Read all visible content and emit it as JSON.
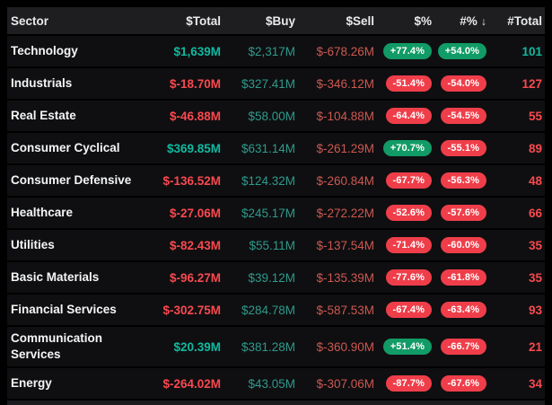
{
  "header": {
    "columns": [
      {
        "label": "Sector"
      },
      {
        "label": "$Total"
      },
      {
        "label": "$Buy"
      },
      {
        "label": "$Sell"
      },
      {
        "label": "$%"
      },
      {
        "label": "#%"
      },
      {
        "label": "#Total"
      }
    ],
    "sort_column": "#%",
    "sort_direction": "descending",
    "sort_icon": "↓"
  },
  "rows": [
    {
      "sector": "Technology",
      "total": "$1,639M",
      "total_tone": "pos",
      "buy": "$2,317M",
      "sell": "$-678.26M",
      "pct_dollar": "+77.4%",
      "pct_dollar_tone": "pos",
      "pct_count": "+54.0%",
      "pct_count_tone": "pos",
      "count": "101",
      "count_tone": "pos"
    },
    {
      "sector": "Industrials",
      "total": "$-18.70M",
      "total_tone": "neg",
      "buy": "$327.41M",
      "sell": "$-346.12M",
      "pct_dollar": "-51.4%",
      "pct_dollar_tone": "neg",
      "pct_count": "-54.0%",
      "pct_count_tone": "neg",
      "count": "127",
      "count_tone": "neg"
    },
    {
      "sector": "Real Estate",
      "total": "$-46.88M",
      "total_tone": "neg",
      "buy": "$58.00M",
      "sell": "$-104.88M",
      "pct_dollar": "-64.4%",
      "pct_dollar_tone": "neg",
      "pct_count": "-54.5%",
      "pct_count_tone": "neg",
      "count": "55",
      "count_tone": "neg"
    },
    {
      "sector": "Consumer Cyclical",
      "total": "$369.85M",
      "total_tone": "pos",
      "buy": "$631.14M",
      "sell": "$-261.29M",
      "pct_dollar": "+70.7%",
      "pct_dollar_tone": "pos",
      "pct_count": "-55.1%",
      "pct_count_tone": "neg",
      "count": "89",
      "count_tone": "neg"
    },
    {
      "sector": "Consumer Defensive",
      "total": "$-136.52M",
      "total_tone": "neg",
      "buy": "$124.32M",
      "sell": "$-260.84M",
      "pct_dollar": "-67.7%",
      "pct_dollar_tone": "neg",
      "pct_count": "-56.3%",
      "pct_count_tone": "neg",
      "count": "48",
      "count_tone": "neg"
    },
    {
      "sector": "Healthcare",
      "total": "$-27.06M",
      "total_tone": "neg",
      "buy": "$245.17M",
      "sell": "$-272.22M",
      "pct_dollar": "-52.6%",
      "pct_dollar_tone": "neg",
      "pct_count": "-57.6%",
      "pct_count_tone": "neg",
      "count": "66",
      "count_tone": "neg"
    },
    {
      "sector": "Utilities",
      "total": "$-82.43M",
      "total_tone": "neg",
      "buy": "$55.11M",
      "sell": "$-137.54M",
      "pct_dollar": "-71.4%",
      "pct_dollar_tone": "neg",
      "pct_count": "-60.0%",
      "pct_count_tone": "neg",
      "count": "35",
      "count_tone": "neg"
    },
    {
      "sector": "Basic Materials",
      "total": "$-96.27M",
      "total_tone": "neg",
      "buy": "$39.12M",
      "sell": "$-135.39M",
      "pct_dollar": "-77.6%",
      "pct_dollar_tone": "neg",
      "pct_count": "-61.8%",
      "pct_count_tone": "neg",
      "count": "35",
      "count_tone": "neg"
    },
    {
      "sector": "Financial Services",
      "total": "$-302.75M",
      "total_tone": "neg",
      "buy": "$284.78M",
      "sell": "$-587.53M",
      "pct_dollar": "-67.4%",
      "pct_dollar_tone": "neg",
      "pct_count": "-63.4%",
      "pct_count_tone": "neg",
      "count": "93",
      "count_tone": "neg"
    },
    {
      "sector": "Communication Services",
      "total": "$20.39M",
      "total_tone": "pos",
      "buy": "$381.28M",
      "sell": "$-360.90M",
      "pct_dollar": "+51.4%",
      "pct_dollar_tone": "pos",
      "pct_count": "-66.7%",
      "pct_count_tone": "neg",
      "count": "21",
      "count_tone": "neg"
    },
    {
      "sector": "Energy",
      "total": "$-264.02M",
      "total_tone": "neg",
      "buy": "$43.05M",
      "sell": "$-307.06M",
      "pct_dollar": "-87.7%",
      "pct_dollar_tone": "neg",
      "pct_count": "-67.6%",
      "pct_count_tone": "neg",
      "count": "34",
      "count_tone": "neg"
    }
  ],
  "colors": {
    "positive_text": "#10b9a0",
    "negative_text": "#f9494f",
    "buy_text": "#2f9a8b",
    "sell_text": "#cd5851",
    "badge_positive_bg": "#119b66",
    "badge_negative_bg": "#ef3e4a",
    "header_bg": "#1e1e20",
    "row_bg": "#0f0f11",
    "page_bg": "#000000"
  }
}
